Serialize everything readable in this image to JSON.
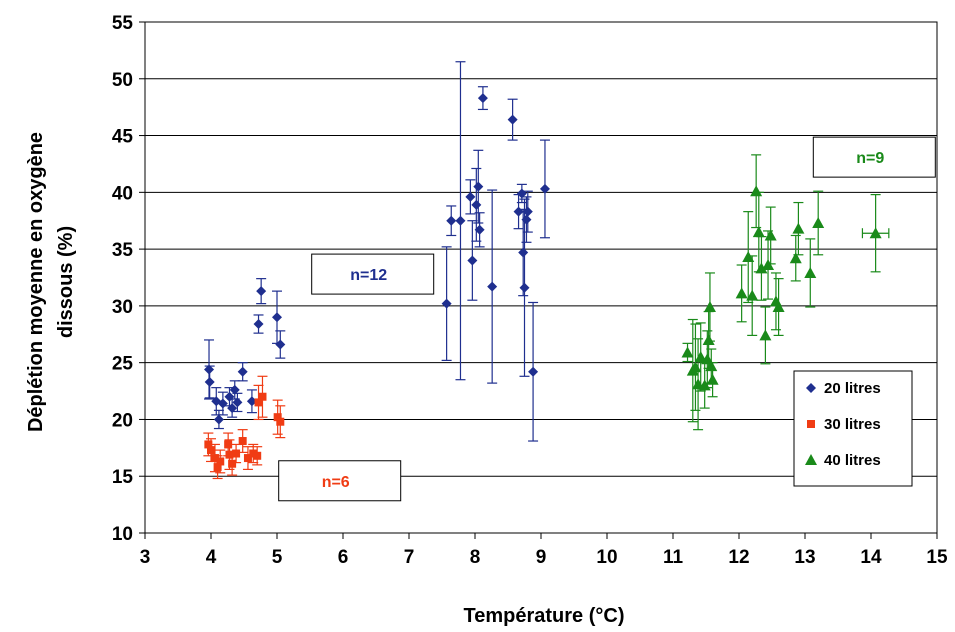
{
  "chart_data": {
    "type": "scatter",
    "title": "",
    "xlabel": "Température (°C)",
    "ylabel_lines": [
      "Déplétion moyenne en oxygène",
      "dissous (%)"
    ],
    "xlim": [
      3,
      15
    ],
    "ylim": [
      10,
      55
    ],
    "x_ticks": [
      "3",
      "4",
      "5",
      "6",
      "7",
      "8",
      "9",
      "10",
      "11",
      "12",
      "13",
      "14",
      "15"
    ],
    "y_ticks": [
      "10",
      "15",
      "20",
      "25",
      "30",
      "35",
      "40",
      "45",
      "50",
      "55"
    ],
    "grid": "horizontal",
    "legend_position": "right",
    "series": [
      {
        "name": "20 litres",
        "color": "#1f2f8f",
        "marker": "diamond",
        "points": [
          {
            "x": 3.97,
            "y": 24.4,
            "yerr": 2.6
          },
          {
            "x": 3.98,
            "y": 23.3,
            "yerr": 1.4
          },
          {
            "x": 4.08,
            "y": 21.6,
            "yerr": 1.2
          },
          {
            "x": 4.12,
            "y": 20.0,
            "yerr": 0.8
          },
          {
            "x": 4.18,
            "y": 21.4,
            "yerr": 1.0
          },
          {
            "x": 4.28,
            "y": 22.0,
            "yerr": 0.8
          },
          {
            "x": 4.32,
            "y": 21.0,
            "yerr": 0.8
          },
          {
            "x": 4.36,
            "y": 22.6,
            "yerr": 0.8
          },
          {
            "x": 4.4,
            "y": 21.5,
            "yerr": 0.8
          },
          {
            "x": 4.48,
            "y": 24.2,
            "yerr": 0.8
          },
          {
            "x": 4.62,
            "y": 21.6,
            "yerr": 1.0
          },
          {
            "x": 4.72,
            "y": 28.4,
            "yerr": 0.8
          },
          {
            "x": 4.76,
            "y": 31.3,
            "yerr": 1.1
          },
          {
            "x": 5.0,
            "y": 29.0,
            "yerr": 2.3
          },
          {
            "x": 5.05,
            "y": 26.6,
            "yerr": 1.2
          },
          {
            "x": 7.57,
            "y": 30.2,
            "yerr": 5.0
          },
          {
            "x": 7.64,
            "y": 37.5,
            "yerr": 1.3
          },
          {
            "x": 7.78,
            "y": 37.5,
            "yerr": 14.0
          },
          {
            "x": 7.93,
            "y": 39.6,
            "yerr": 1.5
          },
          {
            "x": 7.96,
            "y": 34.0,
            "yerr": 3.5
          },
          {
            "x": 8.02,
            "y": 38.9,
            "yerr": 3.2
          },
          {
            "x": 8.05,
            "y": 40.5,
            "yerr": 3.2
          },
          {
            "x": 8.07,
            "y": 36.7,
            "yerr": 1.5
          },
          {
            "x": 8.12,
            "y": 48.3,
            "yerr": 1.0
          },
          {
            "x": 8.26,
            "y": 31.7,
            "yerr": 8.5
          },
          {
            "x": 8.57,
            "y": 46.4,
            "yerr": 1.8
          },
          {
            "x": 8.66,
            "y": 38.3,
            "yerr": 1.5
          },
          {
            "x": 8.71,
            "y": 39.9,
            "yerr": 0.8
          },
          {
            "x": 8.73,
            "y": 34.7,
            "yerr": 3.8
          },
          {
            "x": 8.75,
            "y": 31.6,
            "yerr": 7.8
          },
          {
            "x": 8.78,
            "y": 37.6,
            "yerr": 2.0
          },
          {
            "x": 8.8,
            "y": 38.3,
            "yerr": 1.8
          },
          {
            "x": 8.88,
            "y": 24.2,
            "yerr": 6.1
          },
          {
            "x": 9.06,
            "y": 40.3,
            "yerr": 4.3
          }
        ]
      },
      {
        "name": "30 litres",
        "color": "#f03c14",
        "marker": "square",
        "points": [
          {
            "x": 3.96,
            "y": 17.8,
            "yerr": 1.0
          },
          {
            "x": 4.0,
            "y": 17.3,
            "yerr": 1.0
          },
          {
            "x": 4.06,
            "y": 16.6,
            "yerr": 1.2
          },
          {
            "x": 4.1,
            "y": 15.8,
            "yerr": 1.0
          },
          {
            "x": 4.14,
            "y": 16.3,
            "yerr": 1.0
          },
          {
            "x": 4.26,
            "y": 17.8,
            "yerr": 1.0
          },
          {
            "x": 4.28,
            "y": 16.9,
            "yerr": 1.3
          },
          {
            "x": 4.32,
            "y": 16.1,
            "yerr": 1.0
          },
          {
            "x": 4.38,
            "y": 17.0,
            "yerr": 0.8
          },
          {
            "x": 4.48,
            "y": 18.1,
            "yerr": 1.0
          },
          {
            "x": 4.56,
            "y": 16.6,
            "yerr": 1.0
          },
          {
            "x": 4.64,
            "y": 17.0,
            "yerr": 0.8
          },
          {
            "x": 4.7,
            "y": 16.8,
            "yerr": 0.8
          },
          {
            "x": 4.72,
            "y": 21.5,
            "yerr": 1.5
          },
          {
            "x": 4.78,
            "y": 22.0,
            "yerr": 1.8
          },
          {
            "x": 5.01,
            "y": 20.2,
            "yerr": 1.5
          },
          {
            "x": 5.05,
            "y": 19.8,
            "yerr": 1.4
          }
        ]
      },
      {
        "name": "40 litres",
        "color": "#1a8a1a",
        "marker": "triangle",
        "points": [
          {
            "x": 11.22,
            "y": 25.9,
            "yerr": 0.8
          },
          {
            "x": 11.3,
            "y": 24.3,
            "yerr": 4.5
          },
          {
            "x": 11.34,
            "y": 24.6,
            "yerr": 3.8
          },
          {
            "x": 11.38,
            "y": 23.1,
            "yerr": 4.0
          },
          {
            "x": 11.42,
            "y": 25.5,
            "yerr": 3.0
          },
          {
            "x": 11.48,
            "y": 23.0,
            "yerr": 2.0
          },
          {
            "x": 11.52,
            "y": 25.3,
            "yerr": 2.5
          },
          {
            "x": 11.54,
            "y": 27.0,
            "yerr": 2.5
          },
          {
            "x": 11.56,
            "y": 29.9,
            "yerr": 3.0
          },
          {
            "x": 11.58,
            "y": 24.7,
            "yerr": 1.5
          },
          {
            "x": 11.6,
            "y": 23.5,
            "yerr": 1.5
          },
          {
            "x": 12.04,
            "y": 31.1,
            "yerr": 2.5
          },
          {
            "x": 12.14,
            "y": 34.3,
            "yerr": 4.0
          },
          {
            "x": 12.2,
            "y": 30.9,
            "yerr": 3.5
          },
          {
            "x": 12.26,
            "y": 40.1,
            "yerr": 3.2
          },
          {
            "x": 12.3,
            "y": 36.5,
            "yerr": 3.5
          },
          {
            "x": 12.34,
            "y": 33.3,
            "yerr": 2.8
          },
          {
            "x": 12.4,
            "y": 27.4,
            "yerr": 2.5
          },
          {
            "x": 12.44,
            "y": 33.6,
            "yerr": 3.0
          },
          {
            "x": 12.48,
            "y": 36.2,
            "yerr": 2.5
          },
          {
            "x": 12.56,
            "y": 30.4,
            "yerr": 2.5
          },
          {
            "x": 12.6,
            "y": 29.9,
            "yerr": 2.5
          },
          {
            "x": 12.86,
            "y": 34.2,
            "yerr": 2.0
          },
          {
            "x": 12.9,
            "y": 36.8,
            "yerr": 2.3
          },
          {
            "x": 13.08,
            "y": 32.9,
            "yerr": 3.0
          },
          {
            "x": 13.2,
            "y": 37.3,
            "yerr": 2.8
          },
          {
            "x": 14.07,
            "y": 36.4,
            "yerr": 3.4,
            "xerr": 0.2
          }
        ]
      }
    ],
    "annotations": [
      {
        "text": "n=12",
        "color": "#1f2f8f",
        "box": true,
        "x_center": 6.45,
        "y_center": 32.8
      },
      {
        "text": "n=6",
        "color": "#f03c14",
        "box": true,
        "x_center": 5.95,
        "y_center": 14.6
      },
      {
        "text": "n=9",
        "color": "#1a8a1a",
        "box": true,
        "x_center": 14.05,
        "y_center": 43.1
      }
    ]
  }
}
